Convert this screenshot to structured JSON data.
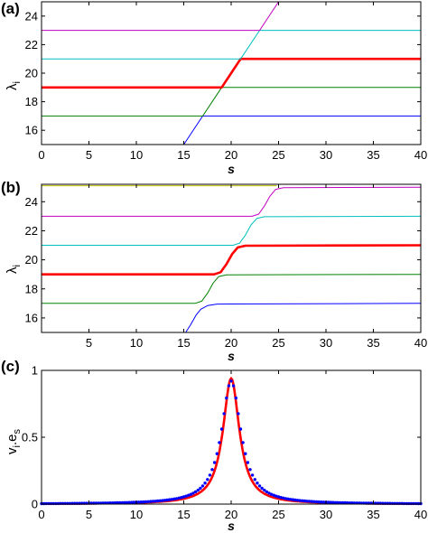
{
  "chart_data": [
    {
      "panel": "(a)",
      "type": "line",
      "xlabel": "s",
      "ylabel": "λ",
      "ylabel_sub": "i",
      "xlim": [
        0,
        40
      ],
      "ylim": [
        15,
        25
      ],
      "xticks": [
        0,
        5,
        10,
        15,
        20,
        25,
        30,
        35,
        40
      ],
      "yticks": [
        16,
        18,
        20,
        22,
        24
      ],
      "grid": false,
      "colors": [
        "#0000ff",
        "#008000",
        "#ff0000",
        "#00bfbf",
        "#bf00bf",
        "#bfbf00"
      ],
      "series": [
        {
          "values": [
            [
              0,
              15
            ],
            [
              15,
              15
            ],
            [
              17,
              17
            ],
            [
              40,
              17
            ]
          ]
        },
        {
          "values": [
            [
              0,
              17
            ],
            [
              17,
              17
            ],
            [
              19,
              19
            ],
            [
              40,
              19
            ]
          ]
        },
        {
          "values": [
            [
              0,
              19
            ],
            [
              19,
              19
            ],
            [
              21,
              21
            ],
            [
              40,
              21
            ]
          ]
        },
        {
          "values": [
            [
              0,
              21
            ],
            [
              21,
              21
            ],
            [
              23,
              23
            ],
            [
              40,
              23
            ]
          ]
        },
        {
          "values": [
            [
              0,
              23
            ],
            [
              23,
              23
            ],
            [
              25,
              25
            ],
            [
              40,
              25
            ]
          ]
        },
        {
          "values": [
            [
              0,
              25
            ],
            [
              40,
              25
            ]
          ]
        }
      ]
    },
    {
      "panel": "(b)",
      "type": "line",
      "xlabel": "s",
      "ylabel": "λ",
      "ylabel_sub": "i",
      "xlim": [
        0,
        40
      ],
      "ylim": [
        15,
        25.2
      ],
      "xticks": [
        5,
        10,
        15,
        20,
        25,
        30,
        35,
        40
      ],
      "yticks": [
        16,
        18,
        20,
        22,
        24
      ],
      "grid": false,
      "colors": [
        "#0000ff",
        "#008000",
        "#ff0000",
        "#00bfbf",
        "#bf00bf",
        "#bfbf00"
      ],
      "series": [
        {
          "values": [
            [
              15.2,
              15
            ],
            [
              15.7,
              15.5
            ],
            [
              16.3,
              16.2
            ],
            [
              16.8,
              16.6
            ],
            [
              17.5,
              16.85
            ],
            [
              18.5,
              16.95
            ],
            [
              40,
              17
            ]
          ]
        },
        {
          "values": [
            [
              0,
              17
            ],
            [
              16.2,
              17
            ],
            [
              16.9,
              17.15
            ],
            [
              17.5,
              17.7
            ],
            [
              18.1,
              18.4
            ],
            [
              18.7,
              18.85
            ],
            [
              19.5,
              18.97
            ],
            [
              40,
              19
            ]
          ]
        },
        {
          "values": [
            [
              0,
              19
            ],
            [
              18.2,
              19
            ],
            [
              18.9,
              19.15
            ],
            [
              19.5,
              19.7
            ],
            [
              20.1,
              20.4
            ],
            [
              20.7,
              20.85
            ],
            [
              21.5,
              20.97
            ],
            [
              40,
              21
            ]
          ]
        },
        {
          "values": [
            [
              0,
              21
            ],
            [
              20.2,
              21
            ],
            [
              20.9,
              21.15
            ],
            [
              21.5,
              21.7
            ],
            [
              22.1,
              22.4
            ],
            [
              22.7,
              22.85
            ],
            [
              23.5,
              22.97
            ],
            [
              40,
              23
            ]
          ]
        },
        {
          "values": [
            [
              0,
              23
            ],
            [
              22.2,
              23
            ],
            [
              22.9,
              23.15
            ],
            [
              23.5,
              23.7
            ],
            [
              24.1,
              24.4
            ],
            [
              24.7,
              24.85
            ],
            [
              25.5,
              24.97
            ],
            [
              40,
              25
            ]
          ]
        },
        {
          "values": [
            [
              0,
              25.1
            ],
            [
              24.8,
              25.1
            ]
          ]
        }
      ]
    },
    {
      "panel": "(c)",
      "type": "line",
      "xlabel": "s",
      "ylabel": "v",
      "ylabel_sub": "i",
      "ylabel_mid": ".e",
      "ylabel_sub2": "s",
      "xlim": [
        0,
        40
      ],
      "ylim": [
        0,
        1
      ],
      "xticks": [
        0,
        5,
        10,
        15,
        20,
        25,
        30,
        35,
        40
      ],
      "yticks": [
        0,
        0.5,
        1
      ],
      "ytick_labels": [
        "0",
        "0.5",
        "1"
      ],
      "grid": false,
      "colors": [
        "#ff0000",
        "#0000ff"
      ],
      "fit_curve": {
        "center": 20,
        "peak": 0.94,
        "half_width": 1.05
      },
      "points": {
        "center": 20,
        "peak": 0.92,
        "half_width": 1.25,
        "step": 0.25
      }
    }
  ]
}
